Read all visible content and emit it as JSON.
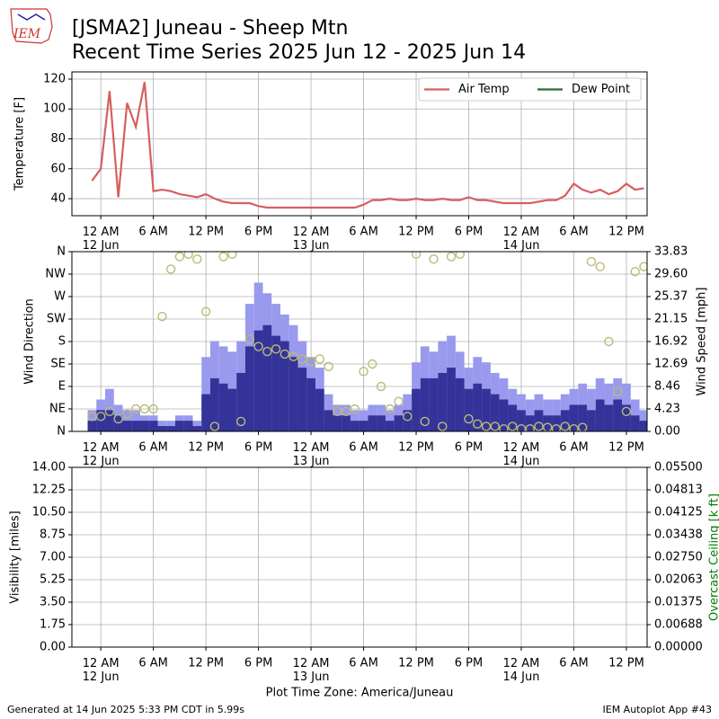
{
  "header": {
    "logo": "IEM",
    "title": "[JSMA2] Juneau - Sheep Mtn",
    "subtitle": "Recent Time Series 2025 Jun 12 - 2025 Jun 14"
  },
  "chart_data": [
    {
      "type": "line",
      "y_label": "Temperature [F]",
      "grid": true,
      "legend": "upper right",
      "xlim": [
        "2025-06-11 20:42",
        "2025-06-14 14:22"
      ],
      "xticks": [
        {
          "value": "2025-06-12 00:00",
          "label": "12 AM\n12 Jun"
        },
        {
          "value": "2025-06-12 06:00",
          "label": "6 AM"
        },
        {
          "value": "2025-06-12 12:00",
          "label": "12 PM"
        },
        {
          "value": "2025-06-12 18:00",
          "label": "6 PM"
        },
        {
          "value": "2025-06-13 00:00",
          "label": "12 AM\n13 Jun"
        },
        {
          "value": "2025-06-13 06:00",
          "label": "6 AM"
        },
        {
          "value": "2025-06-13 12:00",
          "label": "12 PM"
        },
        {
          "value": "2025-06-13 18:00",
          "label": "6 PM"
        },
        {
          "value": "2025-06-14 00:00",
          "label": "12 AM\n14 Jun"
        },
        {
          "value": "2025-06-14 06:00",
          "label": "6 AM"
        },
        {
          "value": "2025-06-14 12:00",
          "label": "12 PM"
        }
      ],
      "ylim": [
        28.6,
        124.8
      ],
      "yticks": [
        40,
        60,
        80,
        100,
        120
      ],
      "x": [
        "2025-06-11 23:00",
        "2025-06-12 00:00",
        "2025-06-12 01:00",
        "2025-06-12 02:00",
        "2025-06-12 03:00",
        "2025-06-12 04:00",
        "2025-06-12 05:00",
        "2025-06-12 06:00",
        "2025-06-12 07:00",
        "2025-06-12 08:00",
        "2025-06-12 09:00",
        "2025-06-12 10:00",
        "2025-06-12 11:00",
        "2025-06-12 12:00",
        "2025-06-12 13:00",
        "2025-06-12 14:00",
        "2025-06-12 15:00",
        "2025-06-12 16:00",
        "2025-06-12 17:00",
        "2025-06-12 18:00",
        "2025-06-12 19:00",
        "2025-06-12 20:00",
        "2025-06-12 21:00",
        "2025-06-12 22:00",
        "2025-06-12 23:00",
        "2025-06-13 00:00",
        "2025-06-13 01:00",
        "2025-06-13 02:00",
        "2025-06-13 03:00",
        "2025-06-13 04:00",
        "2025-06-13 05:00",
        "2025-06-13 06:00",
        "2025-06-13 07:00",
        "2025-06-13 08:00",
        "2025-06-13 09:00",
        "2025-06-13 10:00",
        "2025-06-13 11:00",
        "2025-06-13 12:00",
        "2025-06-13 13:00",
        "2025-06-13 14:00",
        "2025-06-13 15:00",
        "2025-06-13 16:00",
        "2025-06-13 17:00",
        "2025-06-13 18:00",
        "2025-06-13 19:00",
        "2025-06-13 20:00",
        "2025-06-13 21:00",
        "2025-06-13 22:00",
        "2025-06-13 23:00",
        "2025-06-14 00:00",
        "2025-06-14 01:00",
        "2025-06-14 02:00",
        "2025-06-14 03:00",
        "2025-06-14 04:00",
        "2025-06-14 05:00",
        "2025-06-14 06:00",
        "2025-06-14 07:00",
        "2025-06-14 08:00",
        "2025-06-14 09:00",
        "2025-06-14 10:00",
        "2025-06-14 11:00",
        "2025-06-14 12:00",
        "2025-06-14 13:00",
        "2025-06-14 14:00"
      ],
      "series": [
        {
          "name": "Air Temp",
          "color": "#d65f5f",
          "values": [
            52,
            60,
            112,
            41,
            104,
            88,
            118,
            45,
            46,
            45,
            43,
            42,
            41,
            43,
            40,
            38,
            37,
            37,
            37,
            35,
            34,
            34,
            34,
            34,
            34,
            34,
            34,
            34,
            34,
            34,
            34,
            36,
            39,
            39,
            40,
            39,
            39,
            40,
            39,
            39,
            40,
            39,
            39,
            41,
            39,
            39,
            38,
            37,
            37,
            37,
            37,
            38,
            39,
            39,
            42,
            50,
            46,
            44,
            46,
            43,
            45,
            50,
            46,
            47
          ]
        },
        {
          "name": "Dew Point",
          "color": "#2d6a2d",
          "values": [
            null,
            null,
            null,
            null,
            null,
            null,
            null,
            null,
            null,
            null,
            null,
            null,
            null,
            null,
            null,
            null,
            null,
            null,
            null,
            null,
            null,
            null,
            null,
            null,
            null,
            null,
            null,
            null,
            null,
            null,
            null,
            null,
            null,
            null,
            null,
            null,
            null,
            null,
            null,
            null,
            null,
            null,
            null,
            null,
            null,
            null,
            null,
            null,
            null,
            null,
            null,
            null,
            null,
            null,
            null,
            null,
            null,
            null,
            null,
            null,
            null,
            null,
            null,
            null
          ]
        }
      ]
    },
    {
      "type": "wind",
      "y_label": "Wind Direction",
      "y2_label": "Wind Speed [mph]",
      "grid": true,
      "xlim": [
        "2025-06-11 20:42",
        "2025-06-14 14:22"
      ],
      "xticks": [
        {
          "value": "2025-06-12 00:00",
          "label": "12 AM\n12 Jun"
        },
        {
          "value": "2025-06-12 06:00",
          "label": "6 AM"
        },
        {
          "value": "2025-06-12 12:00",
          "label": "12 PM"
        },
        {
          "value": "2025-06-12 18:00",
          "label": "6 PM"
        },
        {
          "value": "2025-06-13 00:00",
          "label": "12 AM\n13 Jun"
        },
        {
          "value": "2025-06-13 06:00",
          "label": "6 AM"
        },
        {
          "value": "2025-06-13 12:00",
          "label": "12 PM"
        },
        {
          "value": "2025-06-13 18:00",
          "label": "6 PM"
        },
        {
          "value": "2025-06-14 00:00",
          "label": "12 AM\n14 Jun"
        },
        {
          "value": "2025-06-14 06:00",
          "label": "6 AM"
        },
        {
          "value": "2025-06-14 12:00",
          "label": "12 PM"
        }
      ],
      "ylim": [
        0,
        360
      ],
      "yticks": [
        {
          "value": 0,
          "label": "N"
        },
        {
          "value": 45,
          "label": "NE"
        },
        {
          "value": 90,
          "label": "E"
        },
        {
          "value": 135,
          "label": "SE"
        },
        {
          "value": 180,
          "label": "S"
        },
        {
          "value": 225,
          "label": "SW"
        },
        {
          "value": 270,
          "label": "W"
        },
        {
          "value": 315,
          "label": "NW"
        },
        {
          "value": 360,
          "label": "N"
        }
      ],
      "y2lim": [
        0,
        33.83
      ],
      "y2ticks": [
        {
          "value": 0,
          "label": "0.00"
        },
        {
          "value": 4.22875,
          "label": "4.23"
        },
        {
          "value": 8.4575,
          "label": "8.46"
        },
        {
          "value": 12.68625,
          "label": "12.69"
        },
        {
          "value": 16.915,
          "label": "16.92"
        },
        {
          "value": 21.14375,
          "label": "21.15"
        },
        {
          "value": 25.3725,
          "label": "25.37"
        },
        {
          "value": 29.60125,
          "label": "29.60"
        },
        {
          "value": 33.83,
          "label": "33.83"
        }
      ],
      "x": [
        "2025-06-11 23:00",
        "2025-06-12 00:00",
        "2025-06-12 01:00",
        "2025-06-12 02:00",
        "2025-06-12 03:00",
        "2025-06-12 04:00",
        "2025-06-12 05:00",
        "2025-06-12 06:00",
        "2025-06-12 07:00",
        "2025-06-12 08:00",
        "2025-06-12 09:00",
        "2025-06-12 10:00",
        "2025-06-12 11:00",
        "2025-06-12 12:00",
        "2025-06-12 13:00",
        "2025-06-12 14:00",
        "2025-06-12 15:00",
        "2025-06-12 16:00",
        "2025-06-12 17:00",
        "2025-06-12 18:00",
        "2025-06-12 19:00",
        "2025-06-12 20:00",
        "2025-06-12 21:00",
        "2025-06-12 22:00",
        "2025-06-12 23:00",
        "2025-06-13 00:00",
        "2025-06-13 01:00",
        "2025-06-13 02:00",
        "2025-06-13 03:00",
        "2025-06-13 04:00",
        "2025-06-13 05:00",
        "2025-06-13 06:00",
        "2025-06-13 07:00",
        "2025-06-13 08:00",
        "2025-06-13 09:00",
        "2025-06-13 10:00",
        "2025-06-13 11:00",
        "2025-06-13 12:00",
        "2025-06-13 13:00",
        "2025-06-13 14:00",
        "2025-06-13 15:00",
        "2025-06-13 16:00",
        "2025-06-13 17:00",
        "2025-06-13 18:00",
        "2025-06-13 19:00",
        "2025-06-13 20:00",
        "2025-06-13 21:00",
        "2025-06-13 22:00",
        "2025-06-13 23:00",
        "2025-06-14 00:00",
        "2025-06-14 01:00",
        "2025-06-14 02:00",
        "2025-06-14 03:00",
        "2025-06-14 04:00",
        "2025-06-14 05:00",
        "2025-06-14 06:00",
        "2025-06-14 07:00",
        "2025-06-14 08:00",
        "2025-06-14 09:00",
        "2025-06-14 10:00",
        "2025-06-14 11:00",
        "2025-06-14 12:00",
        "2025-06-14 13:00",
        "2025-06-14 14:00"
      ],
      "series": [
        {
          "type": "bar",
          "axis": "y2",
          "color": "#9999ee",
          "values": [
            4,
            6,
            8,
            5,
            4,
            4,
            3,
            3,
            2,
            2,
            3,
            3,
            2,
            14,
            17,
            16,
            15,
            17,
            24,
            28,
            26,
            24,
            22,
            20,
            17,
            14,
            12,
            7,
            5,
            5,
            4,
            4,
            5,
            5,
            4,
            5,
            7,
            13,
            16,
            15,
            17,
            18,
            15,
            12,
            14,
            13,
            11,
            10,
            8,
            7,
            6,
            7,
            6,
            6,
            7,
            8,
            9,
            8,
            10,
            9,
            10,
            9,
            6,
            4
          ]
        },
        {
          "type": "bar",
          "axis": "y2",
          "color": "#333399",
          "values": [
            2,
            4,
            4,
            3,
            2,
            2,
            2,
            2,
            1,
            1,
            2,
            2,
            1,
            7,
            10,
            9,
            8,
            11,
            16,
            19,
            20,
            18,
            17,
            14,
            12,
            10,
            8,
            4,
            3,
            3,
            2,
            2,
            3,
            3,
            2,
            3,
            4,
            8,
            10,
            10,
            11,
            12,
            10,
            8,
            9,
            8,
            7,
            6,
            5,
            4,
            3,
            4,
            3,
            3,
            4,
            5,
            5,
            4,
            6,
            5,
            6,
            5,
            3,
            2
          ]
        },
        {
          "type": "scatter",
          "color": "#bbbb77",
          "values": [
            30,
            30,
            40,
            25,
            35,
            45,
            45,
            45,
            230,
            325,
            350,
            355,
            345,
            240,
            10,
            350,
            355,
            20,
            185,
            170,
            160,
            165,
            155,
            150,
            145,
            140,
            145,
            130,
            40,
            40,
            45,
            120,
            135,
            90,
            45,
            60,
            30,
            355,
            20,
            345,
            10,
            350,
            355,
            25,
            15,
            10,
            10,
            5,
            10,
            5,
            5,
            10,
            8,
            5,
            10,
            5,
            8,
            340,
            330,
            180,
            80,
            40,
            320,
            330
          ]
        }
      ]
    },
    {
      "type": "line",
      "y_label": "Visibility [miles]",
      "y2_label": "Overcast Ceiling [k ft]",
      "y2_label_color": "#008000",
      "grid": true,
      "x_label": "Plot Time Zone: America/Juneau",
      "xlim": [
        "2025-06-11 20:42",
        "2025-06-14 14:22"
      ],
      "xticks": [
        {
          "value": "2025-06-12 00:00",
          "label": "12 AM\n12 Jun"
        },
        {
          "value": "2025-06-12 06:00",
          "label": "6 AM"
        },
        {
          "value": "2025-06-12 12:00",
          "label": "12 PM"
        },
        {
          "value": "2025-06-12 18:00",
          "label": "6 PM"
        },
        {
          "value": "2025-06-13 00:00",
          "label": "12 AM\n13 Jun"
        },
        {
          "value": "2025-06-13 06:00",
          "label": "6 AM"
        },
        {
          "value": "2025-06-13 12:00",
          "label": "12 PM"
        },
        {
          "value": "2025-06-13 18:00",
          "label": "6 PM"
        },
        {
          "value": "2025-06-14 00:00",
          "label": "12 AM\n14 Jun"
        },
        {
          "value": "2025-06-14 06:00",
          "label": "6 AM"
        },
        {
          "value": "2025-06-14 12:00",
          "label": "12 PM"
        }
      ],
      "ylim": [
        0,
        14
      ],
      "yticks": [
        {
          "value": 0,
          "label": "0.00"
        },
        1.75,
        {
          "value": 3.5,
          "label": "3.50"
        },
        5.25,
        {
          "value": 7,
          "label": "7.00"
        },
        8.75,
        {
          "value": 10.5,
          "label": "10.50"
        },
        12.25,
        {
          "value": 14,
          "label": "14.00"
        }
      ],
      "y2lim": [
        0,
        0.055
      ],
      "y2ticks": [
        {
          "value": 0,
          "label": "0.00000"
        },
        {
          "value": 0.006875,
          "label": "0.00688"
        },
        {
          "value": 0.01375,
          "label": "0.01375"
        },
        {
          "value": 0.020625,
          "label": "0.02063"
        },
        {
          "value": 0.0275,
          "label": "0.02750"
        },
        {
          "value": 0.034375,
          "label": "0.03438"
        },
        {
          "value": 0.04125,
          "label": "0.04125"
        },
        {
          "value": 0.048125,
          "label": "0.04813"
        },
        {
          "value": 0.055,
          "label": "0.05500"
        }
      ]
    }
  ],
  "footer": {
    "generated": "Generated at 14 Jun 2025 5:33 PM CDT in 5.99s",
    "app": "IEM Autoplot App #43"
  }
}
